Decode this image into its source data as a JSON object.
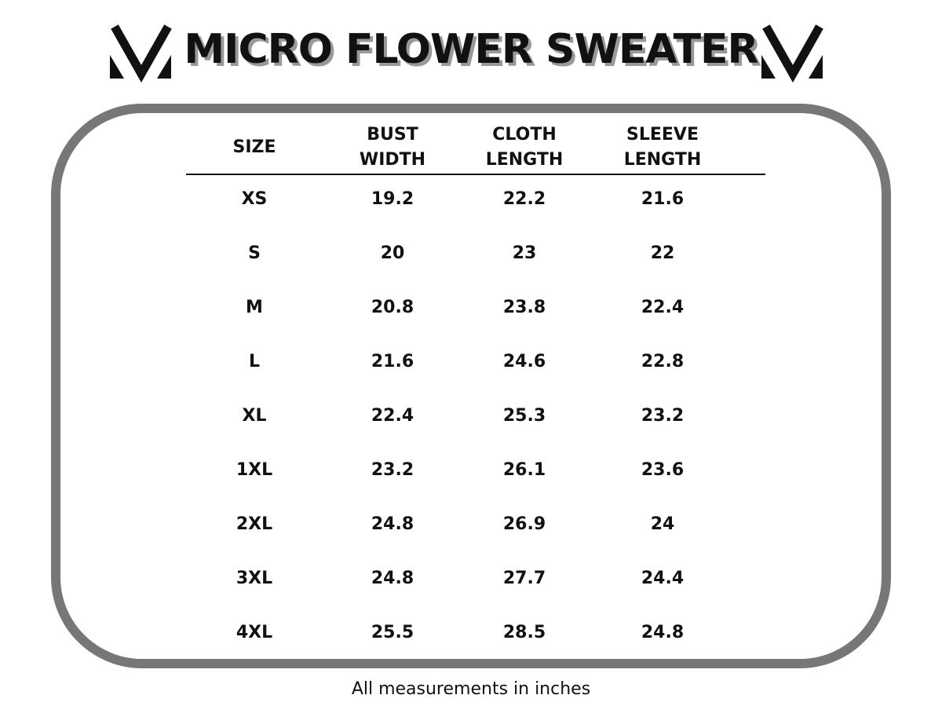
{
  "header": {
    "title": "MICRO FLOWER SWEATER"
  },
  "table": {
    "columns": [
      [
        "SIZE"
      ],
      [
        "BUST",
        "WIDTH"
      ],
      [
        "CLOTH",
        "LENGTH"
      ],
      [
        "SLEEVE",
        "LENGTH"
      ]
    ],
    "rows": [
      [
        "XS",
        "19.2",
        "22.2",
        "21.6"
      ],
      [
        "S",
        "20",
        "23",
        "22"
      ],
      [
        "M",
        "20.8",
        "23.8",
        "22.4"
      ],
      [
        "L",
        "21.6",
        "24.6",
        "22.8"
      ],
      [
        "XL",
        "22.4",
        "25.3",
        "23.2"
      ],
      [
        "1XL",
        "23.2",
        "26.1",
        "23.6"
      ],
      [
        "2XL",
        "24.8",
        "26.9",
        "24"
      ],
      [
        "3XL",
        "24.8",
        "27.7",
        "24.4"
      ],
      [
        "4XL",
        "25.5",
        "28.5",
        "24.8"
      ]
    ]
  },
  "footer": {
    "note": "All measurements in inches"
  }
}
